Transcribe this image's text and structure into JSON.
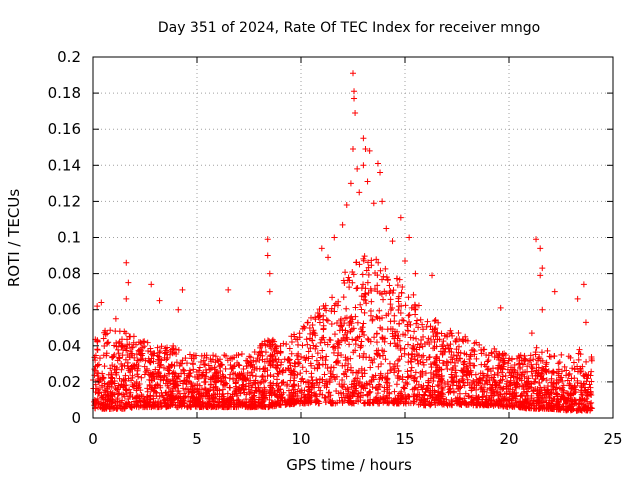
{
  "chart_data": {
    "type": "scatter",
    "title": "Day 351 of 2024, Rate Of TEC Index for receiver mngo",
    "xlabel": "GPS time / hours",
    "ylabel": "ROTI / TECUs",
    "xlim": [
      0,
      25
    ],
    "ylim": [
      0,
      0.2
    ],
    "xticks": [
      0,
      5,
      10,
      15,
      20,
      25
    ],
    "xtick_labels": [
      "0",
      "5",
      "10",
      "15",
      "20",
      "25"
    ],
    "yticks": [
      0,
      0.02,
      0.04,
      0.06,
      0.08,
      0.1,
      0.12,
      0.14,
      0.16,
      0.18,
      0.2
    ],
    "ytick_labels": [
      "0",
      "0.02",
      "0.04",
      "0.06",
      "0.08",
      "0.1",
      "0.12",
      "0.14",
      "0.16",
      "0.18",
      "0.2"
    ],
    "grid": true,
    "marker": "plus",
    "color": "#ff0000",
    "envelope": {
      "x": [
        0,
        0.5,
        1,
        1.5,
        2,
        3,
        4,
        5,
        6,
        7,
        8,
        8.5,
        9,
        10,
        11,
        11.5,
        12,
        12.5,
        13,
        13.5,
        14,
        14.5,
        15,
        16,
        17,
        18,
        19,
        20,
        20.5,
        21,
        21.3,
        21.7,
        22,
        23,
        23.5,
        24
      ],
      "low": [
        0.005,
        0.005,
        0.005,
        0.005,
        0.006,
        0.006,
        0.006,
        0.006,
        0.006,
        0.006,
        0.006,
        0.006,
        0.007,
        0.008,
        0.008,
        0.008,
        0.008,
        0.008,
        0.008,
        0.008,
        0.008,
        0.008,
        0.008,
        0.007,
        0.007,
        0.007,
        0.007,
        0.006,
        0.006,
        0.005,
        0.005,
        0.005,
        0.005,
        0.004,
        0.004,
        0.004
      ],
      "high": [
        0.045,
        0.05,
        0.048,
        0.05,
        0.045,
        0.04,
        0.04,
        0.035,
        0.035,
        0.035,
        0.04,
        0.045,
        0.04,
        0.05,
        0.065,
        0.07,
        0.08,
        0.085,
        0.09,
        0.09,
        0.085,
        0.08,
        0.075,
        0.06,
        0.05,
        0.045,
        0.04,
        0.035,
        0.035,
        0.035,
        0.04,
        0.04,
        0.035,
        0.035,
        0.04,
        0.035
      ]
    },
    "outliers": [
      {
        "x": 0.2,
        "y": 0.062
      },
      {
        "x": 0.4,
        "y": 0.064
      },
      {
        "x": 1.1,
        "y": 0.055
      },
      {
        "x": 1.6,
        "y": 0.086
      },
      {
        "x": 1.7,
        "y": 0.075
      },
      {
        "x": 1.6,
        "y": 0.066
      },
      {
        "x": 2.8,
        "y": 0.074
      },
      {
        "x": 3.2,
        "y": 0.065
      },
      {
        "x": 4.1,
        "y": 0.06
      },
      {
        "x": 4.3,
        "y": 0.071
      },
      {
        "x": 6.5,
        "y": 0.071
      },
      {
        "x": 8.4,
        "y": 0.099
      },
      {
        "x": 8.4,
        "y": 0.09
      },
      {
        "x": 8.5,
        "y": 0.08
      },
      {
        "x": 8.5,
        "y": 0.07
      },
      {
        "x": 11.0,
        "y": 0.094
      },
      {
        "x": 11.3,
        "y": 0.089
      },
      {
        "x": 11.6,
        "y": 0.1
      },
      {
        "x": 12.0,
        "y": 0.107
      },
      {
        "x": 12.2,
        "y": 0.118
      },
      {
        "x": 12.4,
        "y": 0.13
      },
      {
        "x": 12.5,
        "y": 0.191
      },
      {
        "x": 12.55,
        "y": 0.181
      },
      {
        "x": 12.55,
        "y": 0.177
      },
      {
        "x": 12.6,
        "y": 0.169
      },
      {
        "x": 12.5,
        "y": 0.149
      },
      {
        "x": 12.7,
        "y": 0.138
      },
      {
        "x": 12.8,
        "y": 0.125
      },
      {
        "x": 13.0,
        "y": 0.155
      },
      {
        "x": 13.1,
        "y": 0.149
      },
      {
        "x": 13.0,
        "y": 0.14
      },
      {
        "x": 13.3,
        "y": 0.148
      },
      {
        "x": 13.2,
        "y": 0.131
      },
      {
        "x": 13.5,
        "y": 0.119
      },
      {
        "x": 13.7,
        "y": 0.141
      },
      {
        "x": 13.8,
        "y": 0.136
      },
      {
        "x": 13.9,
        "y": 0.12
      },
      {
        "x": 14.1,
        "y": 0.105
      },
      {
        "x": 14.4,
        "y": 0.098
      },
      {
        "x": 14.8,
        "y": 0.111
      },
      {
        "x": 15.2,
        "y": 0.1
      },
      {
        "x": 15.0,
        "y": 0.087
      },
      {
        "x": 15.5,
        "y": 0.08
      },
      {
        "x": 16.3,
        "y": 0.079
      },
      {
        "x": 19.6,
        "y": 0.061
      },
      {
        "x": 21.1,
        "y": 0.047
      },
      {
        "x": 21.3,
        "y": 0.099
      },
      {
        "x": 21.5,
        "y": 0.094
      },
      {
        "x": 21.6,
        "y": 0.083
      },
      {
        "x": 21.5,
        "y": 0.079
      },
      {
        "x": 21.6,
        "y": 0.06
      },
      {
        "x": 22.2,
        "y": 0.07
      },
      {
        "x": 23.3,
        "y": 0.066
      },
      {
        "x": 23.6,
        "y": 0.074
      },
      {
        "x": 23.7,
        "y": 0.053
      }
    ]
  }
}
